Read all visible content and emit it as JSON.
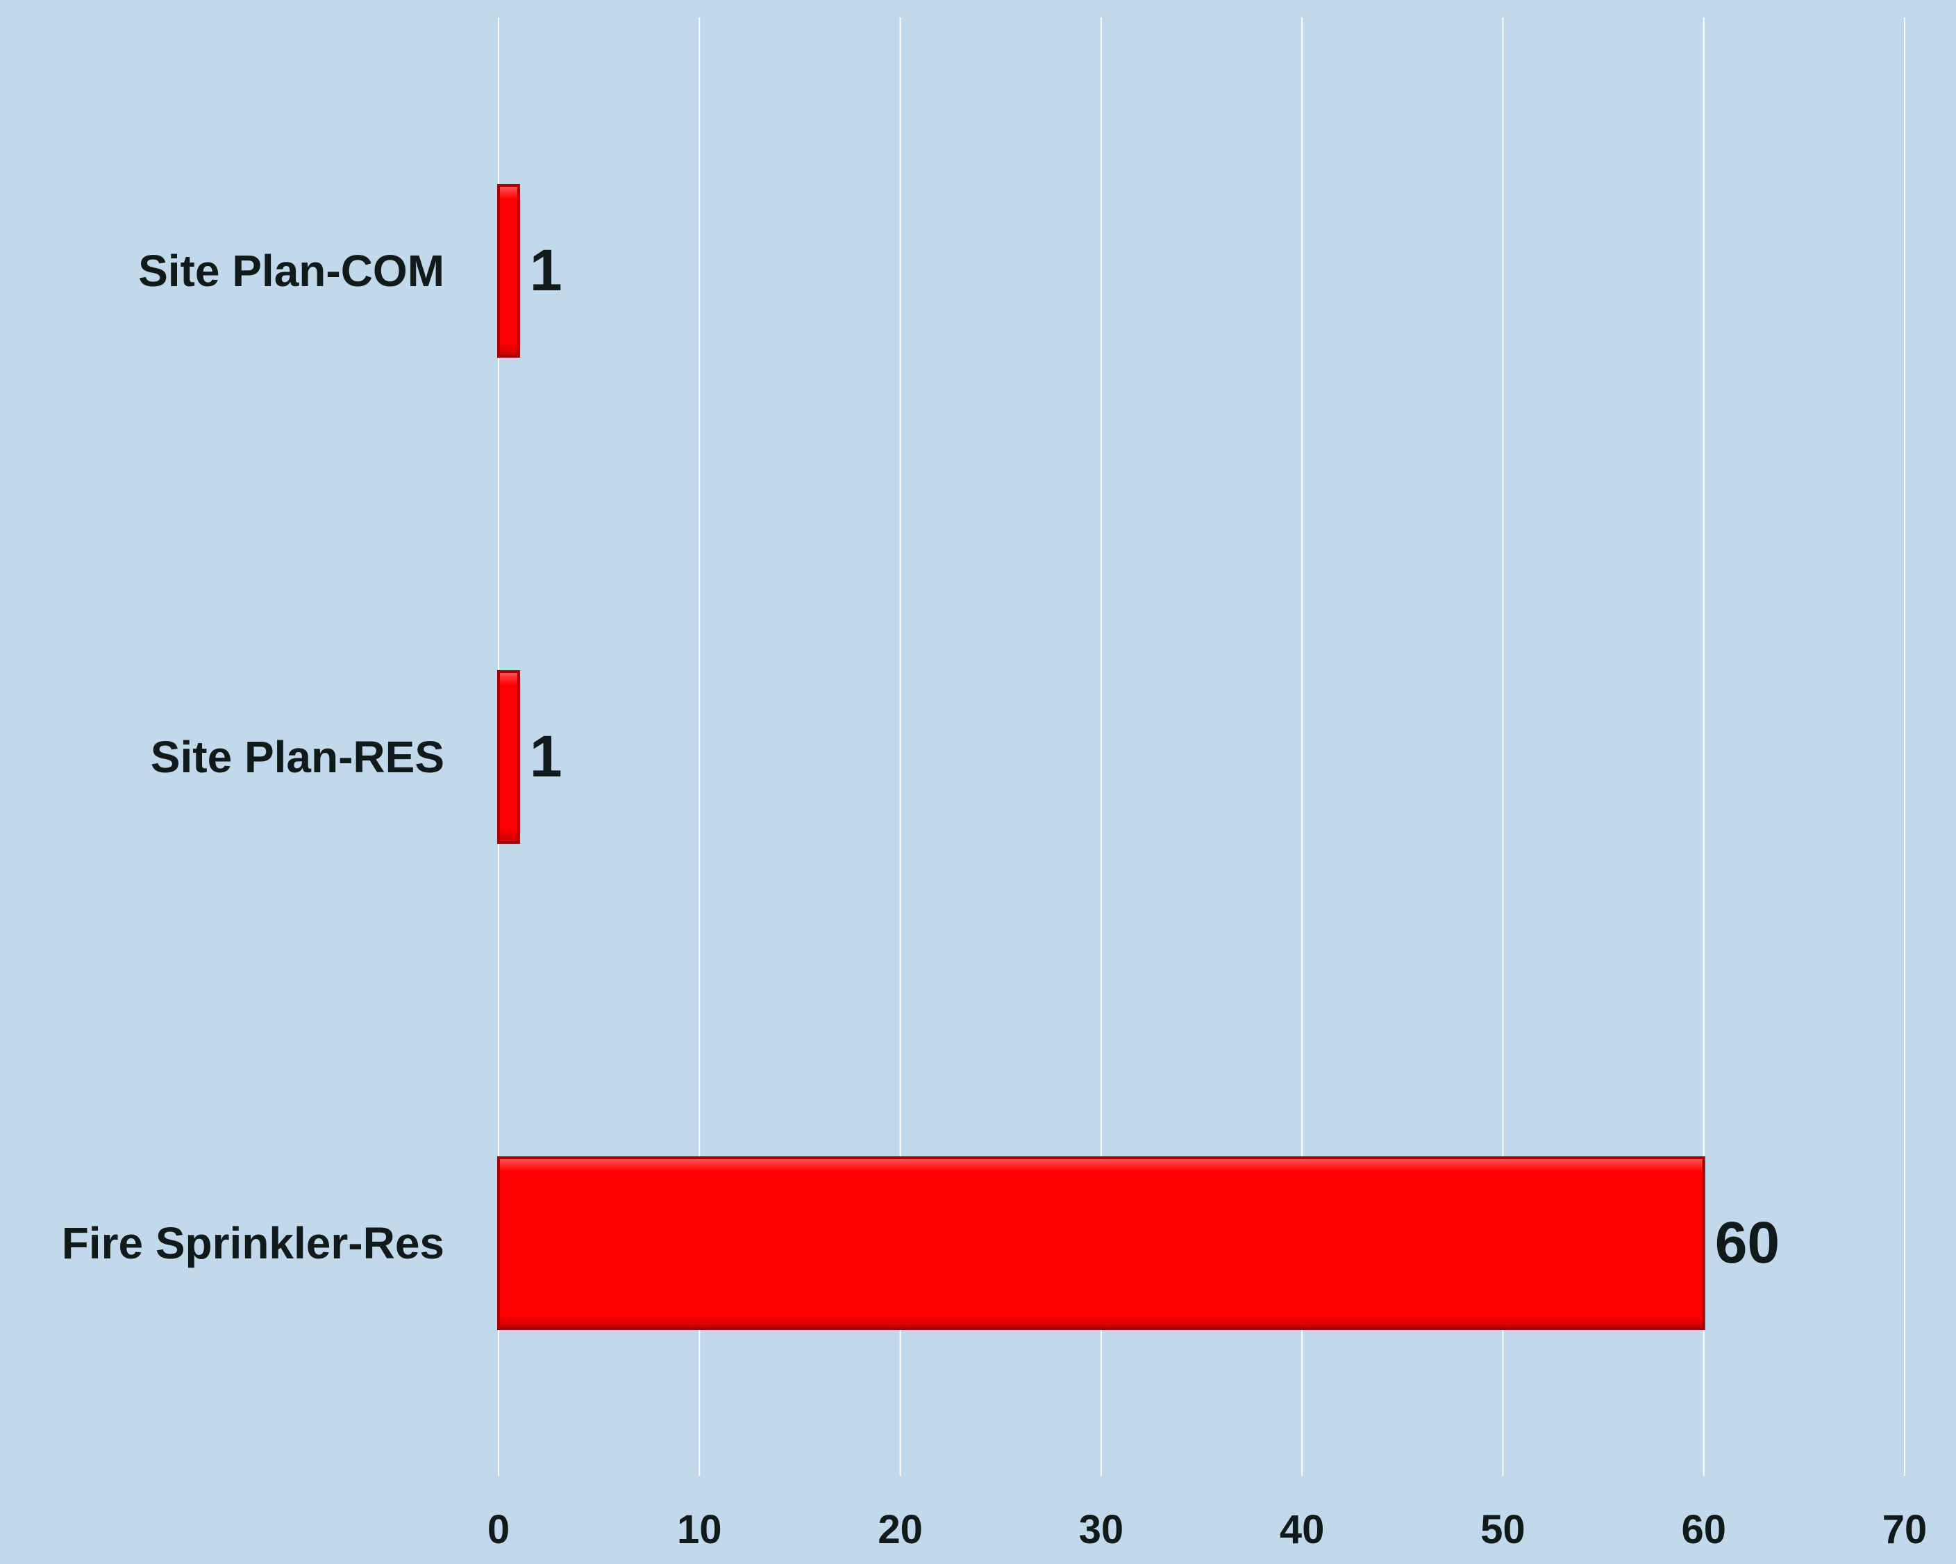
{
  "chart_data": {
    "type": "bar",
    "orientation": "horizontal",
    "title": "",
    "xlabel": "",
    "ylabel": "",
    "categories": [
      "Site Plan-COM",
      "Site Plan-RES",
      "Fire Sprinkler-Res"
    ],
    "values": [
      1,
      1,
      60
    ],
    "data_labels": [
      "1",
      "1",
      "60"
    ],
    "xlim": [
      0,
      70
    ],
    "x_ticks": [
      "0",
      "10",
      "20",
      "30",
      "40",
      "50",
      "60",
      "70"
    ],
    "grid": "vertical",
    "legend": "none",
    "colors": {
      "background": "#c2d9eb",
      "bar_fill": "#ff0000",
      "bar_edge": "#a00000",
      "gridline": "#ffffff",
      "text": "#111a1a"
    }
  }
}
